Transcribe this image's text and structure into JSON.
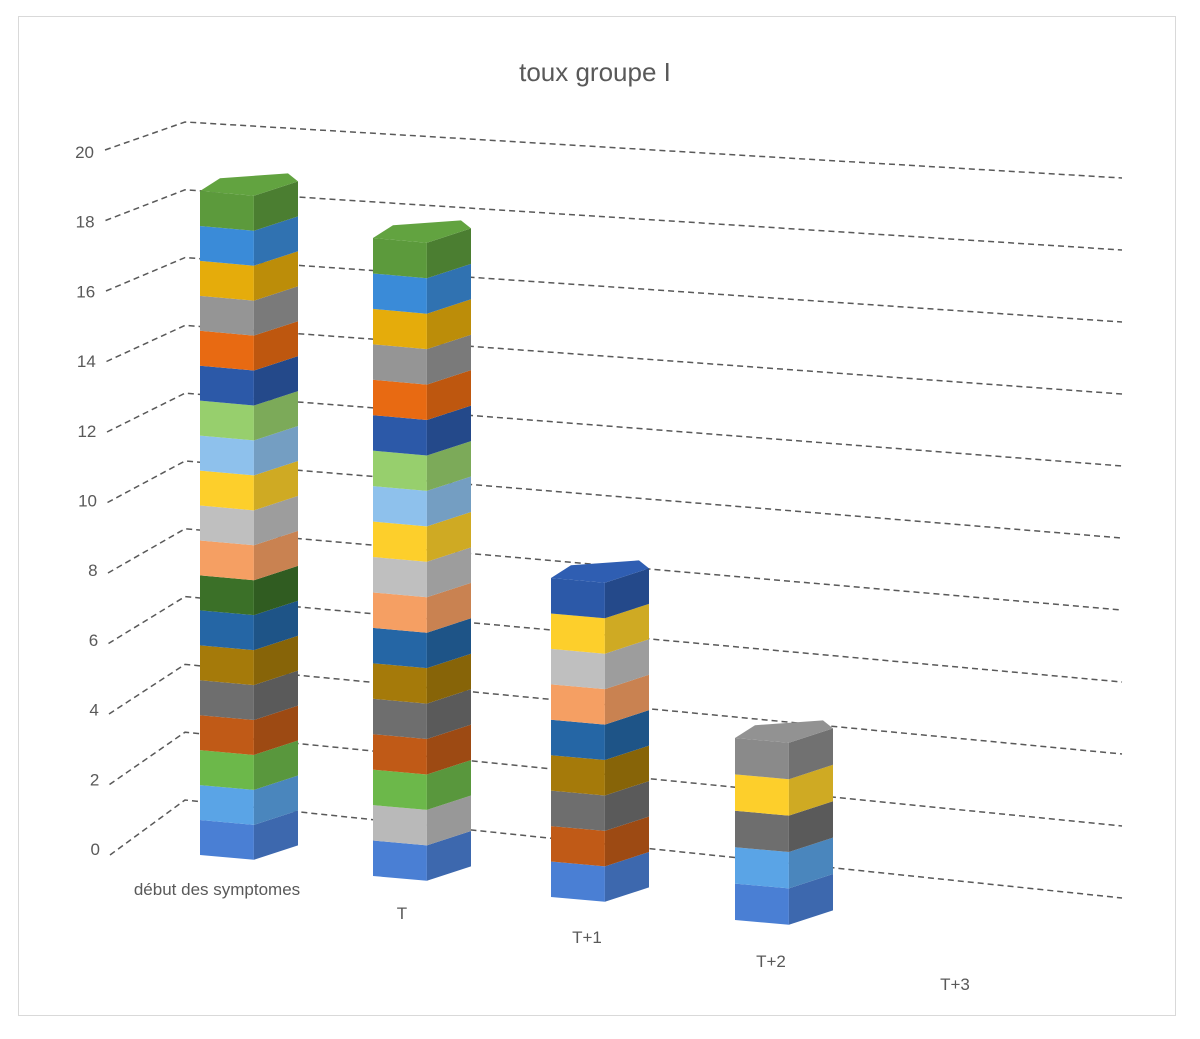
{
  "chart_data": {
    "type": "bar",
    "stacked": true,
    "view": "3d",
    "title": "toux groupe I",
    "categories": [
      "début des symptomes",
      "T",
      "T+1",
      "T+2",
      "T+3"
    ],
    "values": [
      19,
      18,
      9,
      5,
      0
    ],
    "segment_colors": [
      [
        "#4a7fd4",
        "#5aa4e6",
        "#6cb84a",
        "#c05a17",
        "#6e6e6e",
        "#a57a0a",
        "#2566a5",
        "#3b7028",
        "#f59f63",
        "#bfbfbf",
        "#fdcf2b",
        "#8ec1ec",
        "#97cf6d",
        "#2c59a8",
        "#e86a12",
        "#959595",
        "#e5ac0b",
        "#3a8bd8",
        "#5c9a3c"
      ],
      [
        "#4a7fd4",
        "#b9b9b9",
        "#6cb84a",
        "#c05a17",
        "#6e6e6e",
        "#a57a0a",
        "#2566a5",
        "#f59f63",
        "#bfbfbf",
        "#fdcf2b",
        "#8ec1ec",
        "#97cf6d",
        "#2c59a8",
        "#e86a12",
        "#959595",
        "#e5ac0b",
        "#3a8bd8",
        "#5c9a3c"
      ],
      [
        "#4a7fd4",
        "#c05a17",
        "#6e6e6e",
        "#a57a0a",
        "#2566a5",
        "#f59f63",
        "#bfbfbf",
        "#fdcf2b",
        "#2c59a8"
      ],
      [
        "#4a7fd4",
        "#5aa4e6",
        "#6e6e6e",
        "#fdcf2b",
        "#8a8a8a"
      ],
      []
    ],
    "y_ticks": [
      "0",
      "2",
      "4",
      "6",
      "8",
      "10",
      "12",
      "14",
      "16",
      "18",
      "20"
    ],
    "ylim": [
      0,
      20
    ],
    "grid": true,
    "legend": "none"
  }
}
